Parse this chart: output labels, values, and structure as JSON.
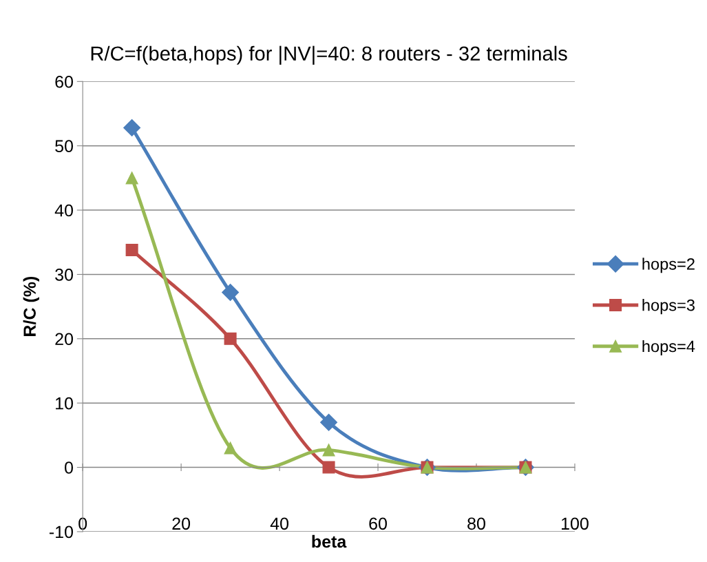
{
  "chart_data": {
    "type": "line",
    "title": "R/C=f(beta,hops) for |NV|=40: 8 routers - 32 terminals",
    "xlabel": "beta",
    "ylabel": "R/C (%)",
    "x": [
      10,
      30,
      50,
      70,
      90
    ],
    "series": [
      {
        "name": "hops=2",
        "color": "#4a7ebb",
        "marker": "diamond",
        "values": [
          52.8,
          27.2,
          7,
          0,
          0
        ]
      },
      {
        "name": "hops=3",
        "color": "#be4b48",
        "marker": "square",
        "values": [
          33.8,
          20,
          0,
          0,
          0
        ]
      },
      {
        "name": "hops=4",
        "color": "#98b954",
        "marker": "triangle",
        "values": [
          45,
          3,
          2.7,
          0,
          0
        ]
      }
    ],
    "xlim": [
      0,
      100
    ],
    "xticks": [
      0,
      20,
      40,
      60,
      80,
      100
    ],
    "ylim": [
      -10,
      60
    ],
    "yticks": [
      -10,
      0,
      10,
      20,
      30,
      40,
      50,
      60
    ],
    "grid": "y",
    "legend": "right",
    "line_style": "solid"
  }
}
